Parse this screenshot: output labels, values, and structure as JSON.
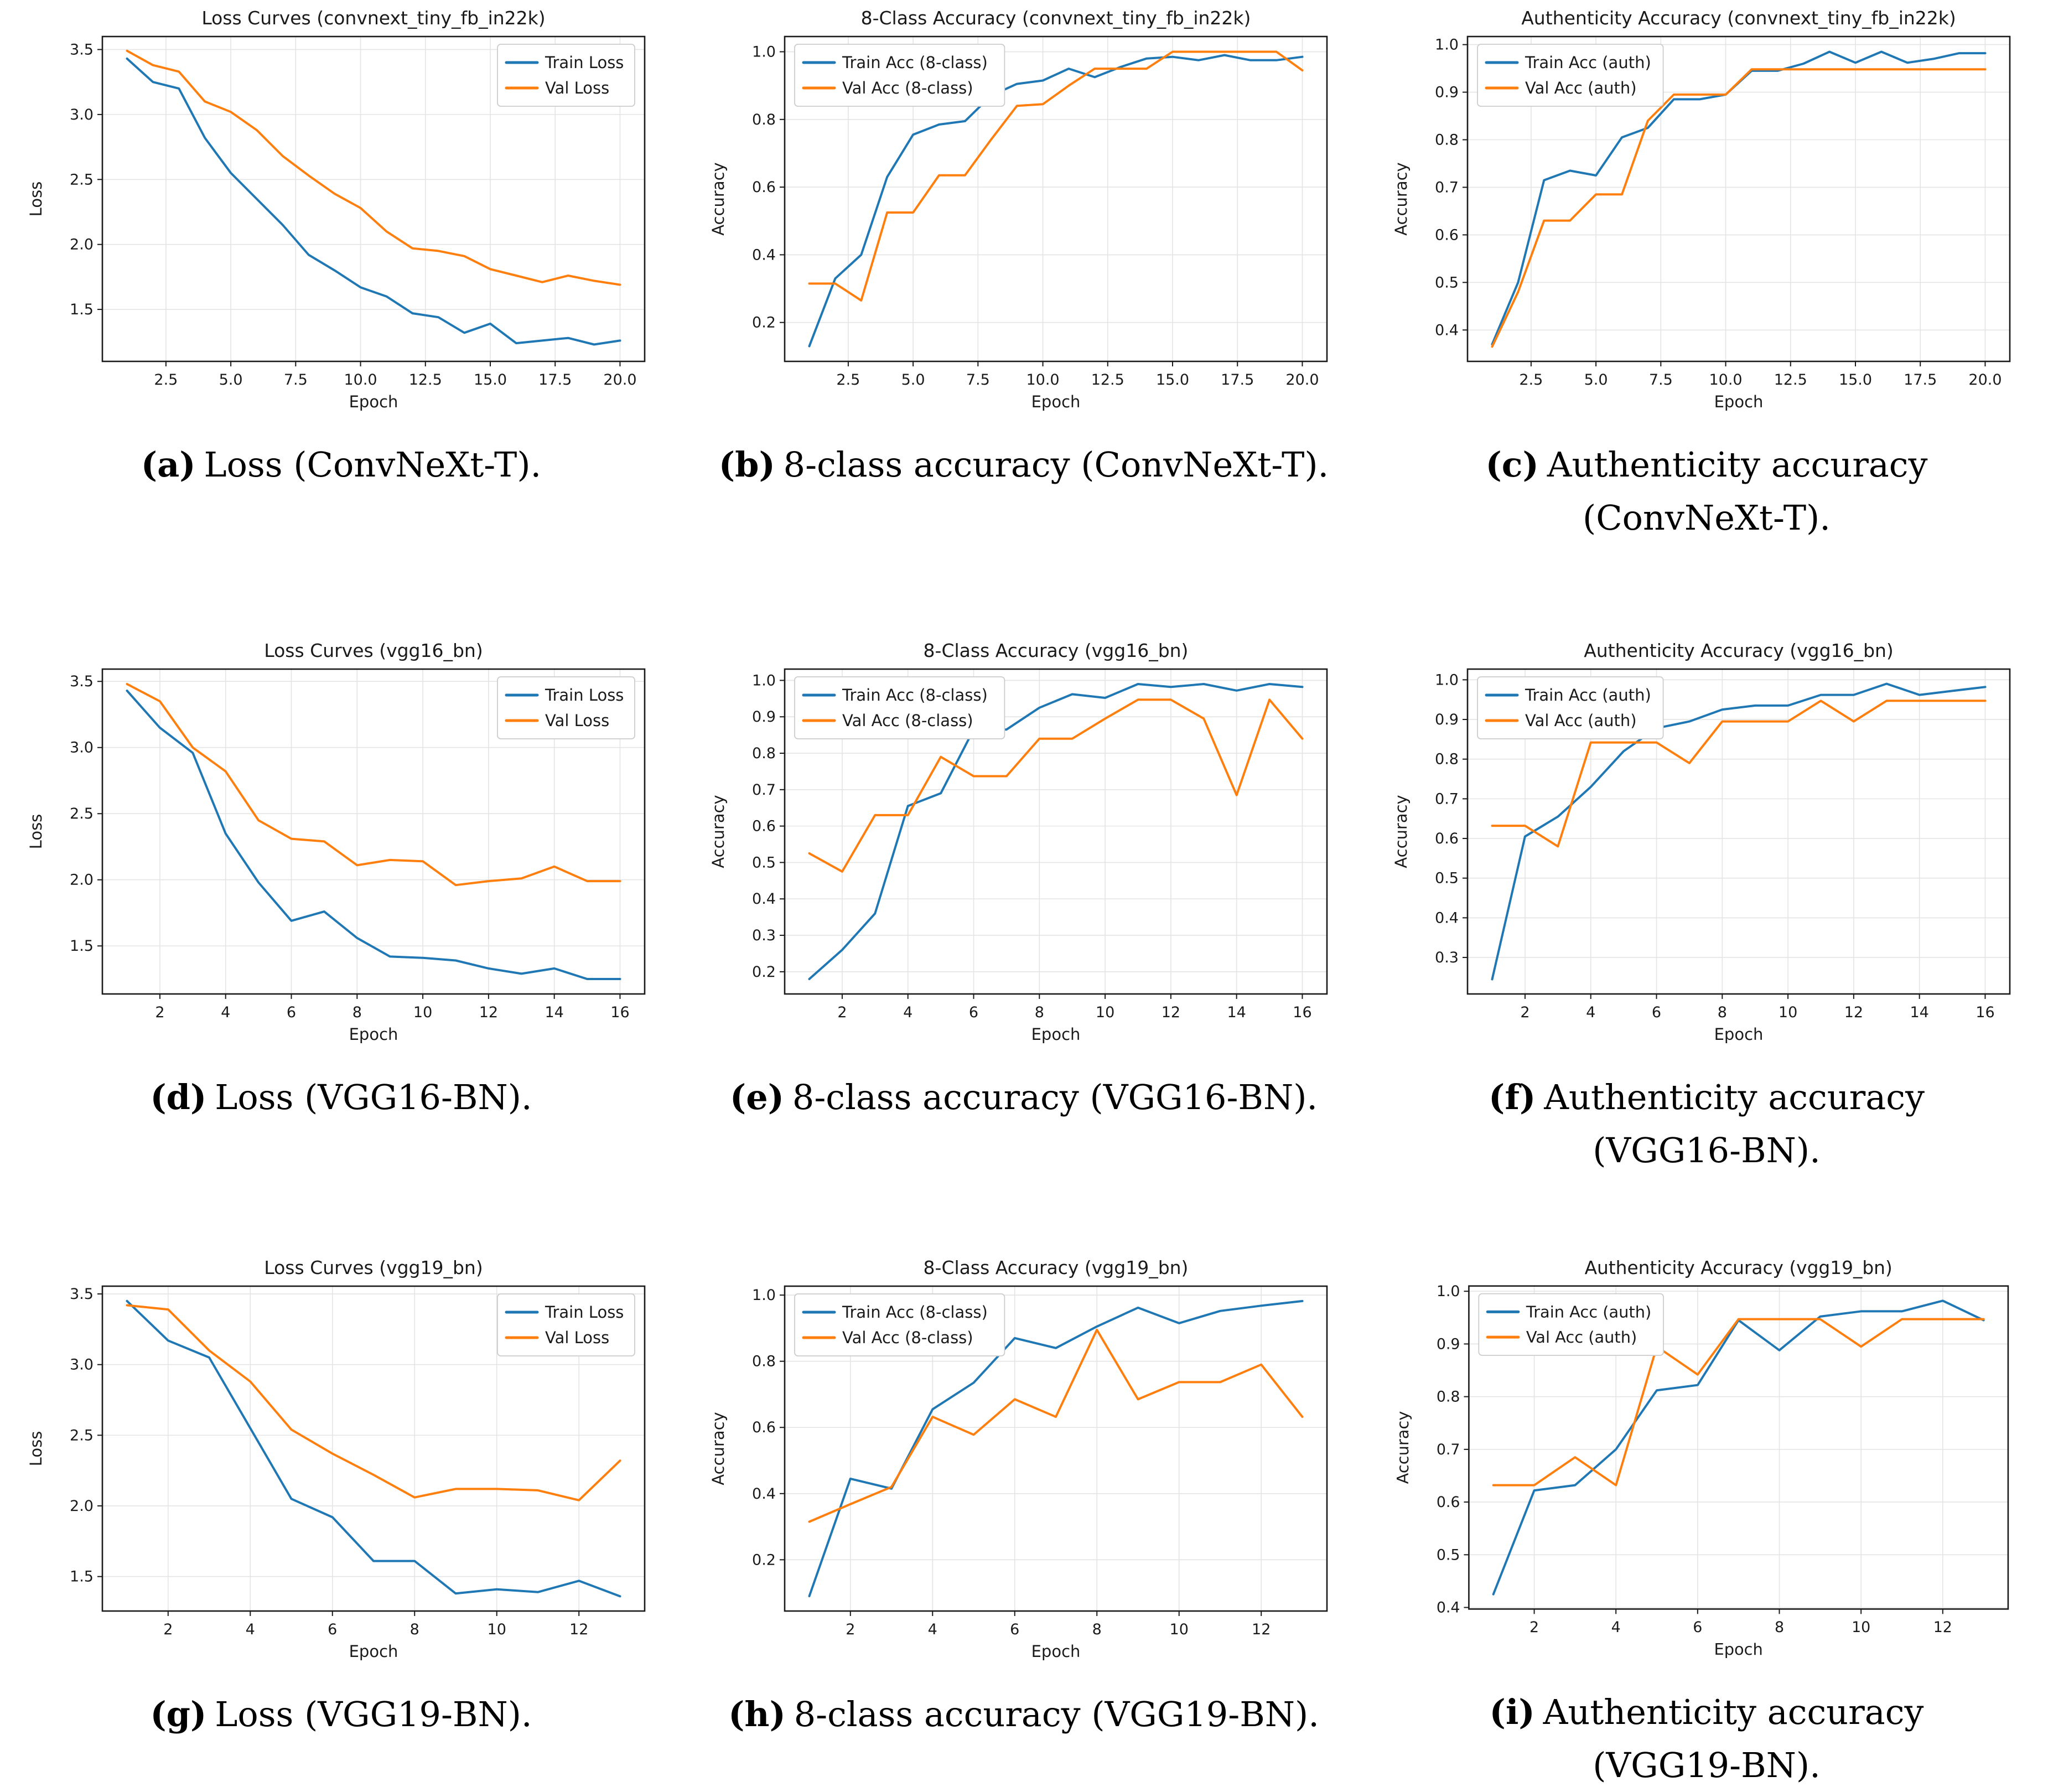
{
  "colors": {
    "train_line": "#1f77b4",
    "val_line": "#ff7f0e",
    "grid_line": "#e4e4e4",
    "spine": "#1a1a1a",
    "tick_text": "#1a1a1a",
    "legend_border": "#cccccc",
    "legend_fill": "#ffffff",
    "background": "#ffffff"
  },
  "chart_data": [
    {
      "id": "a",
      "type": "line",
      "title": "Loss Curves (convnext_tiny_fb_in22k)",
      "xlabel": "Epoch",
      "ylabel": "Loss",
      "x": [
        1,
        2,
        3,
        4,
        5,
        6,
        7,
        8,
        9,
        10,
        11,
        12,
        13,
        14,
        15,
        16,
        17,
        18,
        19,
        20
      ],
      "series": [
        {
          "name": "Train Loss",
          "color": "#1f77b4",
          "values": [
            3.43,
            3.25,
            3.2,
            2.82,
            2.55,
            2.35,
            2.15,
            1.92,
            1.8,
            1.67,
            1.6,
            1.47,
            1.44,
            1.32,
            1.39,
            1.24,
            1.26,
            1.28,
            1.23,
            1.26
          ]
        },
        {
          "name": "Val Loss",
          "color": "#ff7f0e",
          "values": [
            3.49,
            3.38,
            3.33,
            3.1,
            3.02,
            2.88,
            2.68,
            2.53,
            2.39,
            2.28,
            2.1,
            1.97,
            1.95,
            1.91,
            1.81,
            1.76,
            1.71,
            1.76,
            1.72,
            1.69
          ]
        }
      ],
      "xlim": [
        0.05,
        20.95
      ],
      "ylim": [
        1.1,
        3.6
      ],
      "x_ticks": {
        "values": [
          2.5,
          5,
          7.5,
          10,
          12.5,
          15,
          17.5,
          20
        ],
        "labels": [
          "2.5",
          "5.0",
          "7.5",
          "10.0",
          "12.5",
          "15.0",
          "17.5",
          "20.0"
        ]
      },
      "y_ticks": {
        "values": [
          1.5,
          2.0,
          2.5,
          3.0,
          3.5
        ],
        "labels": [
          "1.5",
          "2.0",
          "2.5",
          "3.0",
          "3.5"
        ]
      },
      "legend_position": "ne",
      "grid": true,
      "caption": {
        "label": "(a)",
        "lines": [
          "Loss (ConvNeXt-T)."
        ]
      }
    },
    {
      "id": "b",
      "type": "line",
      "title": "8-Class Accuracy (convnext_tiny_fb_in22k)",
      "xlabel": "Epoch",
      "ylabel": "Accuracy",
      "x": [
        1,
        2,
        3,
        4,
        5,
        6,
        7,
        8,
        9,
        10,
        11,
        12,
        13,
        14,
        15,
        16,
        17,
        18,
        19,
        20
      ],
      "series": [
        {
          "name": "Train Acc (8-class)",
          "color": "#1f77b4",
          "values": [
            0.13,
            0.33,
            0.4,
            0.63,
            0.755,
            0.785,
            0.795,
            0.87,
            0.905,
            0.915,
            0.95,
            0.925,
            0.955,
            0.98,
            0.985,
            0.975,
            0.99,
            0.975,
            0.975,
            0.985
          ]
        },
        {
          "name": "Val Acc (8-class)",
          "color": "#ff7f0e",
          "values": [
            0.315,
            0.315,
            0.265,
            0.525,
            0.525,
            0.635,
            0.635,
            0.74,
            0.84,
            0.845,
            0.9,
            0.95,
            0.95,
            0.95,
            1.0,
            1.0,
            1.0,
            1.0,
            1.0,
            0.945
          ]
        }
      ],
      "xlim": [
        0.05,
        20.95
      ],
      "ylim": [
        0.085,
        1.045
      ],
      "x_ticks": {
        "values": [
          2.5,
          5,
          7.5,
          10,
          12.5,
          15,
          17.5,
          20
        ],
        "labels": [
          "2.5",
          "5.0",
          "7.5",
          "10.0",
          "12.5",
          "15.0",
          "17.5",
          "20.0"
        ]
      },
      "y_ticks": {
        "values": [
          0.2,
          0.4,
          0.6,
          0.8,
          1.0
        ],
        "labels": [
          "0.2",
          "0.4",
          "0.6",
          "0.8",
          "1.0"
        ]
      },
      "legend_position": "nw",
      "grid": true,
      "caption": {
        "label": "(b)",
        "lines": [
          "8-class accuracy (ConvNeXt-T)."
        ]
      }
    },
    {
      "id": "c",
      "type": "line",
      "title": "Authenticity Accuracy (convnext_tiny_fb_in22k)",
      "xlabel": "Epoch",
      "ylabel": "Accuracy",
      "x": [
        1,
        2,
        3,
        4,
        5,
        6,
        7,
        8,
        9,
        10,
        11,
        12,
        13,
        14,
        15,
        16,
        17,
        18,
        19,
        20
      ],
      "series": [
        {
          "name": "Train Acc (auth)",
          "color": "#1f77b4",
          "values": [
            0.37,
            0.5,
            0.715,
            0.735,
            0.725,
            0.805,
            0.825,
            0.885,
            0.885,
            0.895,
            0.945,
            0.945,
            0.96,
            0.985,
            0.962,
            0.985,
            0.962,
            0.97,
            0.982,
            0.982
          ]
        },
        {
          "name": "Val Acc (auth)",
          "color": "#ff7f0e",
          "values": [
            0.365,
            0.48,
            0.63,
            0.63,
            0.685,
            0.685,
            0.84,
            0.895,
            0.895,
            0.895,
            0.948,
            0.948,
            0.948,
            0.948,
            0.948,
            0.948,
            0.948,
            0.948,
            0.948,
            0.948
          ]
        }
      ],
      "xlim": [
        0.05,
        20.95
      ],
      "ylim": [
        0.334,
        1.017
      ],
      "x_ticks": {
        "values": [
          2.5,
          5,
          7.5,
          10,
          12.5,
          15,
          17.5,
          20
        ],
        "labels": [
          "2.5",
          "5.0",
          "7.5",
          "10.0",
          "12.5",
          "15.0",
          "17.5",
          "20.0"
        ]
      },
      "y_ticks": {
        "values": [
          0.4,
          0.5,
          0.6,
          0.7,
          0.8,
          0.9,
          1.0
        ],
        "labels": [
          "0.4",
          "0.5",
          "0.6",
          "0.7",
          "0.8",
          "0.9",
          "1.0"
        ]
      },
      "legend_position": "nw",
      "grid": true,
      "caption": {
        "label": "(c)",
        "lines": [
          "Authenticity accuracy",
          "(ConvNeXt-T)."
        ]
      }
    },
    {
      "id": "d",
      "type": "line",
      "title": "Loss Curves (vgg16_bn)",
      "xlabel": "Epoch",
      "ylabel": "Loss",
      "x": [
        1,
        2,
        3,
        4,
        5,
        6,
        7,
        8,
        9,
        10,
        11,
        12,
        13,
        14,
        15,
        16
      ],
      "series": [
        {
          "name": "Train Loss",
          "color": "#1f77b4",
          "values": [
            3.43,
            3.15,
            2.96,
            2.35,
            1.98,
            1.69,
            1.76,
            1.56,
            1.42,
            1.41,
            1.39,
            1.33,
            1.29,
            1.33,
            1.25,
            1.25
          ]
        },
        {
          "name": "Val Loss",
          "color": "#ff7f0e",
          "values": [
            3.48,
            3.35,
            3.0,
            2.82,
            2.45,
            2.31,
            2.29,
            2.11,
            2.15,
            2.14,
            1.96,
            1.99,
            2.01,
            2.1,
            1.99,
            1.99
          ]
        }
      ],
      "xlim": [
        0.25,
        16.75
      ],
      "ylim": [
        1.137,
        3.593
      ],
      "x_ticks": {
        "values": [
          2,
          4,
          6,
          8,
          10,
          12,
          14,
          16
        ],
        "labels": [
          "2",
          "4",
          "6",
          "8",
          "10",
          "12",
          "14",
          "16"
        ]
      },
      "y_ticks": {
        "values": [
          1.5,
          2.0,
          2.5,
          3.0,
          3.5
        ],
        "labels": [
          "1.5",
          "2.0",
          "2.5",
          "3.0",
          "3.5"
        ]
      },
      "legend_position": "ne",
      "grid": true,
      "caption": {
        "label": "(d)",
        "lines": [
          "Loss (VGG16-BN)."
        ]
      }
    },
    {
      "id": "e",
      "type": "line",
      "title": "8-Class Accuracy (vgg16_bn)",
      "xlabel": "Epoch",
      "ylabel": "Accuracy",
      "x": [
        1,
        2,
        3,
        4,
        5,
        6,
        7,
        8,
        9,
        10,
        11,
        12,
        13,
        14,
        15,
        16
      ],
      "series": [
        {
          "name": "Train Acc (8-class)",
          "color": "#1f77b4",
          "values": [
            0.18,
            0.26,
            0.36,
            0.655,
            0.69,
            0.865,
            0.865,
            0.925,
            0.962,
            0.952,
            0.99,
            0.982,
            0.99,
            0.972,
            0.99,
            0.982
          ]
        },
        {
          "name": "Val Acc (8-class)",
          "color": "#ff7f0e",
          "values": [
            0.525,
            0.475,
            0.63,
            0.63,
            0.79,
            0.737,
            0.737,
            0.84,
            0.84,
            0.895,
            0.947,
            0.947,
            0.895,
            0.685,
            0.947,
            0.84
          ]
        }
      ],
      "xlim": [
        0.25,
        16.75
      ],
      "ylim": [
        0.139,
        1.031
      ],
      "x_ticks": {
        "values": [
          2,
          4,
          6,
          8,
          10,
          12,
          14,
          16
        ],
        "labels": [
          "2",
          "4",
          "6",
          "8",
          "10",
          "12",
          "14",
          "16"
        ]
      },
      "y_ticks": {
        "values": [
          0.2,
          0.3,
          0.4,
          0.5,
          0.6,
          0.7,
          0.8,
          0.9,
          1.0
        ],
        "labels": [
          "0.2",
          "0.3",
          "0.4",
          "0.5",
          "0.6",
          "0.7",
          "0.8",
          "0.9",
          "1.0"
        ]
      },
      "legend_position": "nw",
      "grid": true,
      "caption": {
        "label": "(e)",
        "lines": [
          "8-class accuracy (VGG16-BN)."
        ]
      }
    },
    {
      "id": "f",
      "type": "line",
      "title": "Authenticity Accuracy (vgg16_bn)",
      "xlabel": "Epoch",
      "ylabel": "Accuracy",
      "x": [
        1,
        2,
        3,
        4,
        5,
        6,
        7,
        8,
        9,
        10,
        11,
        12,
        13,
        14,
        15,
        16
      ],
      "series": [
        {
          "name": "Train Acc (auth)",
          "color": "#1f77b4",
          "values": [
            0.245,
            0.605,
            0.655,
            0.73,
            0.82,
            0.878,
            0.895,
            0.925,
            0.935,
            0.935,
            0.962,
            0.962,
            0.99,
            0.962,
            0.972,
            0.982
          ]
        },
        {
          "name": "Val Acc (auth)",
          "color": "#ff7f0e",
          "values": [
            0.632,
            0.632,
            0.58,
            0.842,
            0.842,
            0.842,
            0.79,
            0.895,
            0.895,
            0.895,
            0.947,
            0.895,
            0.947,
            0.947,
            0.947,
            0.947
          ]
        }
      ],
      "xlim": [
        0.25,
        16.75
      ],
      "ylim": [
        0.208,
        1.027
      ],
      "x_ticks": {
        "values": [
          2,
          4,
          6,
          8,
          10,
          12,
          14,
          16
        ],
        "labels": [
          "2",
          "4",
          "6",
          "8",
          "10",
          "12",
          "14",
          "16"
        ]
      },
      "y_ticks": {
        "values": [
          0.3,
          0.4,
          0.5,
          0.6,
          0.7,
          0.8,
          0.9,
          1.0
        ],
        "labels": [
          "0.3",
          "0.4",
          "0.5",
          "0.6",
          "0.7",
          "0.8",
          "0.9",
          "1.0"
        ]
      },
      "legend_position": "nw",
      "grid": true,
      "caption": {
        "label": "(f)",
        "lines": [
          "Authenticity accuracy",
          "(VGG16-BN)."
        ]
      }
    },
    {
      "id": "g",
      "type": "line",
      "title": "Loss Curves (vgg19_bn)",
      "xlabel": "Epoch",
      "ylabel": "Loss",
      "x": [
        1,
        2,
        3,
        4,
        5,
        6,
        7,
        8,
        9,
        10,
        11,
        12,
        13
      ],
      "series": [
        {
          "name": "Train Loss",
          "color": "#1f77b4",
          "values": [
            3.45,
            3.17,
            3.05,
            2.55,
            2.05,
            1.92,
            1.61,
            1.61,
            1.38,
            1.41,
            1.39,
            1.47,
            1.36
          ]
        },
        {
          "name": "Val Loss",
          "color": "#ff7f0e",
          "values": [
            3.42,
            3.39,
            3.1,
            2.88,
            2.54,
            2.37,
            2.22,
            2.06,
            2.12,
            2.12,
            2.11,
            2.04,
            2.32
          ]
        }
      ],
      "xlim": [
        0.4,
        13.6
      ],
      "ylim": [
        1.256,
        3.555
      ],
      "x_ticks": {
        "values": [
          2,
          4,
          6,
          8,
          10,
          12
        ],
        "labels": [
          "2",
          "4",
          "6",
          "8",
          "10",
          "12"
        ]
      },
      "y_ticks": {
        "values": [
          1.5,
          2.0,
          2.5,
          3.0,
          3.5
        ],
        "labels": [
          "1.5",
          "2.0",
          "2.5",
          "3.0",
          "3.5"
        ]
      },
      "legend_position": "ne",
      "grid": true,
      "caption": {
        "label": "(g)",
        "lines": [
          "Loss (VGG19-BN)."
        ]
      }
    },
    {
      "id": "h",
      "type": "line",
      "title": "8-Class Accuracy (vgg19_bn)",
      "xlabel": "Epoch",
      "ylabel": "Accuracy",
      "x": [
        1,
        2,
        3,
        4,
        5,
        6,
        7,
        8,
        9,
        10,
        11,
        12,
        13
      ],
      "series": [
        {
          "name": "Train Acc (8-class)",
          "color": "#1f77b4",
          "values": [
            0.09,
            0.445,
            0.415,
            0.655,
            0.735,
            0.87,
            0.84,
            0.905,
            0.962,
            0.915,
            0.952,
            0.968,
            0.982
          ]
        },
        {
          "name": "Val Acc (8-class)",
          "color": "#ff7f0e",
          "values": [
            0.315,
            0.368,
            0.42,
            0.632,
            0.578,
            0.685,
            0.632,
            0.895,
            0.685,
            0.737,
            0.737,
            0.79,
            0.632
          ]
        }
      ],
      "xlim": [
        0.4,
        13.6
      ],
      "ylim": [
        0.045,
        1.027
      ],
      "x_ticks": {
        "values": [
          2,
          4,
          6,
          8,
          10,
          12
        ],
        "labels": [
          "2",
          "4",
          "6",
          "8",
          "10",
          "12"
        ]
      },
      "y_ticks": {
        "values": [
          0.2,
          0.4,
          0.6,
          0.8,
          1.0
        ],
        "labels": [
          "0.2",
          "0.4",
          "0.6",
          "0.8",
          "1.0"
        ]
      },
      "legend_position": "nw",
      "grid": true,
      "caption": {
        "label": "(h)",
        "lines": [
          "8-class accuracy (VGG19-BN)."
        ]
      }
    },
    {
      "id": "i",
      "type": "line",
      "title": "Authenticity Accuracy (vgg19_bn)",
      "xlabel": "Epoch",
      "ylabel": "Accuracy",
      "x": [
        1,
        2,
        3,
        4,
        5,
        6,
        7,
        8,
        9,
        10,
        11,
        12,
        13
      ],
      "series": [
        {
          "name": "Train Acc (auth)",
          "color": "#1f77b4",
          "values": [
            0.425,
            0.622,
            0.632,
            0.7,
            0.812,
            0.822,
            0.945,
            0.888,
            0.952,
            0.962,
            0.962,
            0.982,
            0.945
          ]
        },
        {
          "name": "Val Acc (auth)",
          "color": "#ff7f0e",
          "values": [
            0.632,
            0.632,
            0.685,
            0.632,
            0.895,
            0.842,
            0.947,
            0.947,
            0.947,
            0.895,
            0.947,
            0.947,
            0.947
          ]
        }
      ],
      "xlim": [
        0.4,
        13.6
      ],
      "ylim": [
        0.397,
        1.01
      ],
      "x_ticks": {
        "values": [
          2,
          4,
          6,
          8,
          10,
          12
        ],
        "labels": [
          "2",
          "4",
          "6",
          "8",
          "10",
          "12"
        ]
      },
      "y_ticks": {
        "values": [
          0.4,
          0.5,
          0.6,
          0.7,
          0.8,
          0.9,
          1.0
        ],
        "labels": [
          "0.4",
          "0.5",
          "0.6",
          "0.7",
          "0.8",
          "0.9",
          "1.0"
        ]
      },
      "legend_position": "nw",
      "grid": true,
      "caption": {
        "label": "(i)",
        "lines": [
          "Authenticity accuracy",
          "(VGG19-BN)."
        ]
      }
    }
  ]
}
